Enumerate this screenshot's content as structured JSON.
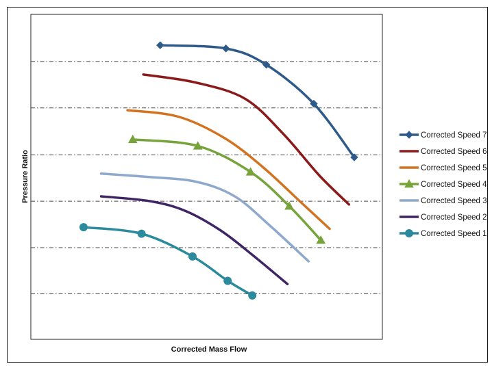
{
  "chart_data": {
    "type": "line",
    "title": "",
    "xlabel": "Corrected Mass Flow",
    "ylabel": "Pressure Ratio",
    "xlim": [
      0,
      100
    ],
    "ylim": [
      0,
      100
    ],
    "grid": "horizontal dash-dot",
    "legend_position": "right",
    "series": [
      {
        "name": "Corrected Speed 7",
        "color": "#2E5A8A",
        "marker": "diamond",
        "points": [
          [
            36.8,
            90.5
          ],
          [
            55.5,
            89.5
          ],
          [
            67,
            84.5
          ],
          [
            80.5,
            72.5
          ],
          [
            92,
            56
          ]
        ]
      },
      {
        "name": "Corrected Speed 6",
        "color": "#8B1A1A",
        "marker": "none",
        "points": [
          [
            32,
            81.5
          ],
          [
            47,
            79
          ],
          [
            61,
            74
          ],
          [
            72,
            63
          ],
          [
            82,
            50.5
          ],
          [
            90.5,
            41.5
          ]
        ]
      },
      {
        "name": "Corrected Speed 5",
        "color": "#D2731F",
        "marker": "none",
        "points": [
          [
            27.5,
            70.5
          ],
          [
            42,
            68.5
          ],
          [
            55,
            62
          ],
          [
            66,
            53
          ],
          [
            77,
            42
          ],
          [
            85,
            34
          ]
        ]
      },
      {
        "name": "Corrected Speed 4",
        "color": "#77A33B",
        "marker": "triangle",
        "points": [
          [
            29,
            61.5
          ],
          [
            47.5,
            59.5
          ],
          [
            62.5,
            51.5
          ],
          [
            73.5,
            41
          ],
          [
            82.5,
            30.5
          ]
        ]
      },
      {
        "name": "Corrected Speed 3",
        "color": "#8FA9CC",
        "marker": "none",
        "points": [
          [
            20,
            51
          ],
          [
            33,
            50
          ],
          [
            47,
            48.5
          ],
          [
            58,
            44
          ],
          [
            68,
            35
          ],
          [
            79,
            24
          ]
        ]
      },
      {
        "name": "Corrected Speed 2",
        "color": "#3F2565",
        "marker": "none",
        "points": [
          [
            20,
            44
          ],
          [
            34,
            42.5
          ],
          [
            44,
            39.5
          ],
          [
            54,
            33.5
          ],
          [
            63,
            26
          ],
          [
            73,
            17
          ]
        ]
      },
      {
        "name": "Corrected Speed 1",
        "color": "#2B8A9C",
        "marker": "circle",
        "points": [
          [
            15,
            34.5
          ],
          [
            31.5,
            32.5
          ],
          [
            46,
            25.5
          ],
          [
            56,
            18
          ],
          [
            63,
            13.5
          ]
        ]
      }
    ]
  }
}
